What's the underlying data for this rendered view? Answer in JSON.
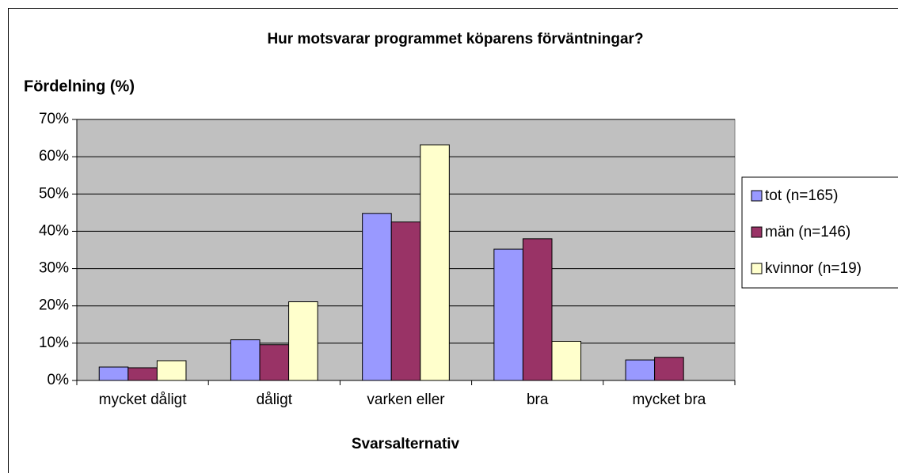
{
  "chart_data": {
    "type": "bar",
    "title": "Hur motsvarar programmet köparens förväntningar?",
    "y_label": "Fördelning (%)",
    "x_label": "Svarsalternativ",
    "categories": [
      "mycket dåligt",
      "dåligt",
      "varken eller",
      "bra",
      "mycket bra"
    ],
    "series": [
      {
        "name": "tot (n=165)",
        "color": "#9999ff",
        "values": [
          3.6,
          10.9,
          44.8,
          35.2,
          5.5
        ]
      },
      {
        "name": "män (n=146)",
        "color": "#993366",
        "values": [
          3.4,
          9.6,
          42.5,
          38.0,
          6.2
        ]
      },
      {
        "name": "kvinnor (n=19)",
        "color": "#ffffcc",
        "values": [
          5.3,
          21.1,
          63.2,
          10.5,
          0
        ]
      }
    ],
    "ylim": [
      0,
      70
    ],
    "yticks": [
      {
        "value": 0,
        "label": "0%"
      },
      {
        "value": 10,
        "label": "10%"
      },
      {
        "value": 20,
        "label": "20%"
      },
      {
        "value": 30,
        "label": "30%"
      },
      {
        "value": 40,
        "label": "40%"
      },
      {
        "value": 50,
        "label": "50%"
      },
      {
        "value": 60,
        "label": "60%"
      },
      {
        "value": 70,
        "label": "70%"
      }
    ],
    "grid": true,
    "legend": "right",
    "plot_background": "#c0c0c0"
  }
}
